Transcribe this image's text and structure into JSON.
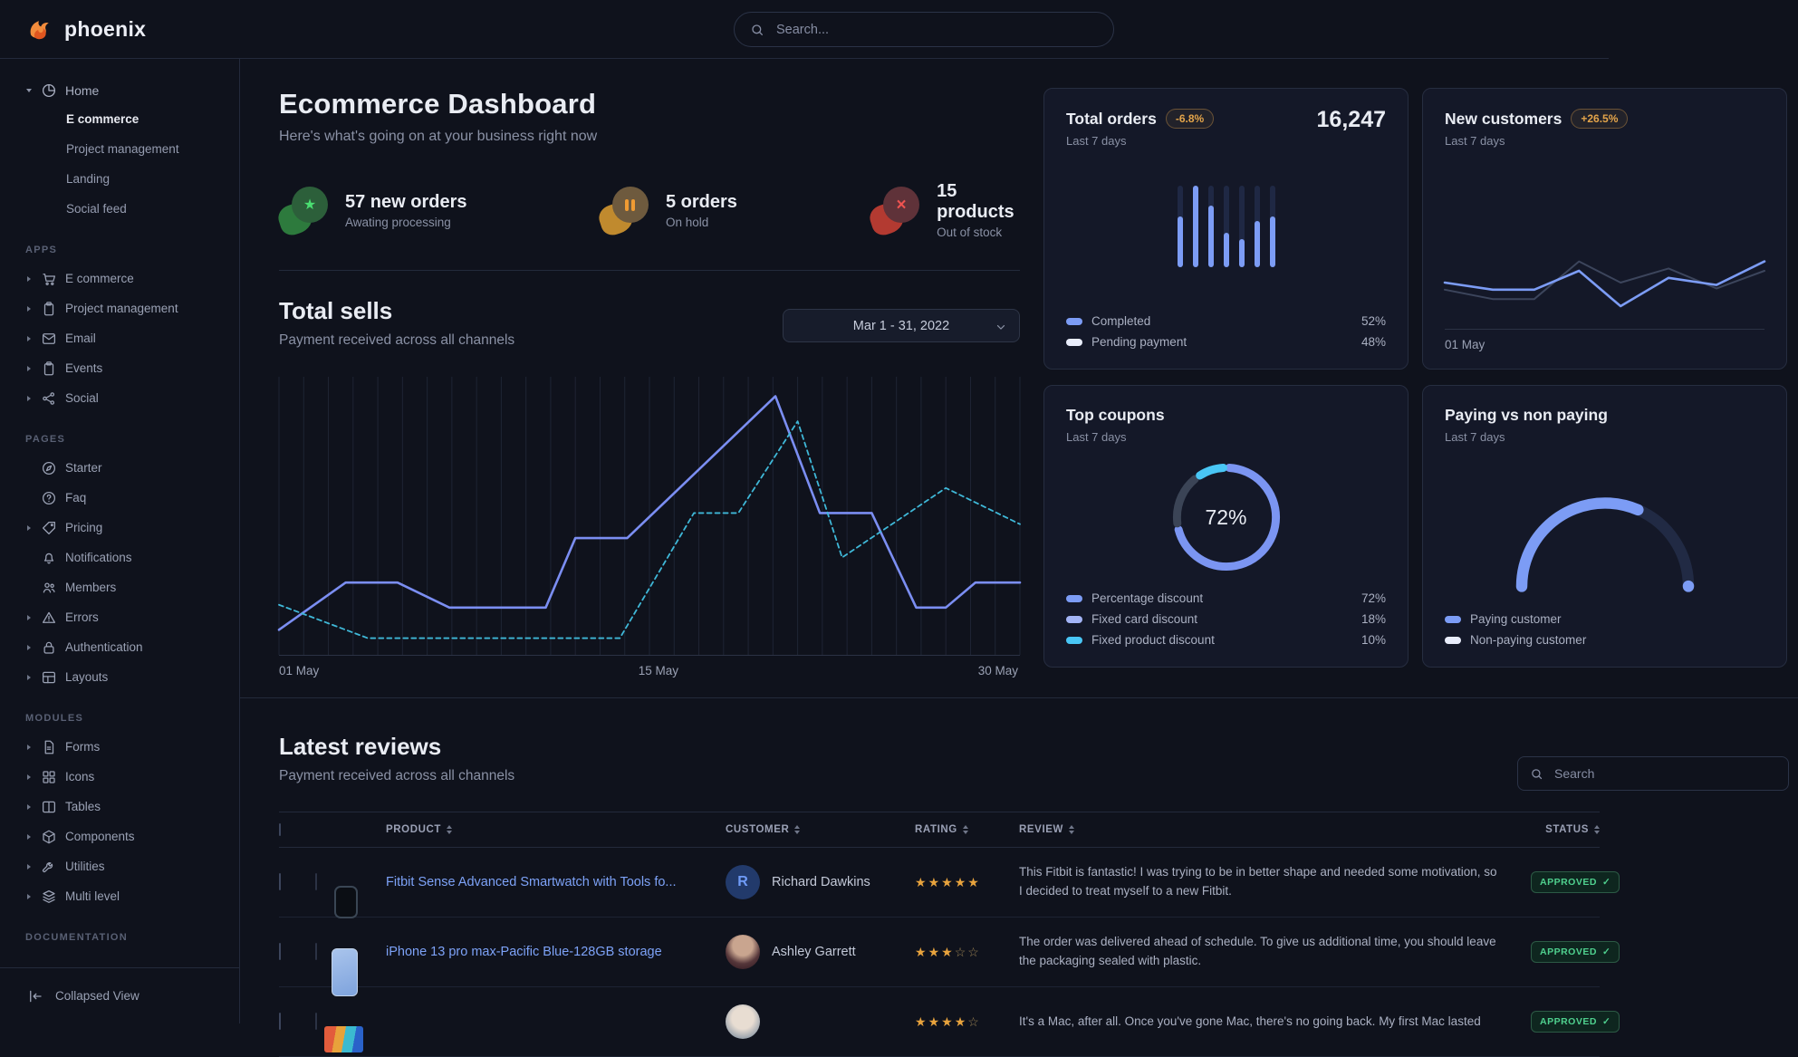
{
  "brand": {
    "name": "phoenix"
  },
  "navbar": {
    "search_placeholder": "Search..."
  },
  "sidebar": {
    "home": {
      "label": "Home",
      "children": [
        {
          "label": "E commerce",
          "active": true
        },
        {
          "label": "Project management",
          "active": false
        },
        {
          "label": "Landing",
          "active": false
        },
        {
          "label": "Social feed",
          "active": false
        }
      ]
    },
    "sections": [
      {
        "label": "APPS",
        "items": [
          {
            "label": "E commerce",
            "icon": "cart-icon",
            "caret": true
          },
          {
            "label": "Project management",
            "icon": "clipboard-icon",
            "caret": true
          },
          {
            "label": "Email",
            "icon": "envelope-icon",
            "caret": true
          },
          {
            "label": "Events",
            "icon": "clipboard-icon",
            "caret": true
          },
          {
            "label": "Social",
            "icon": "share-icon",
            "caret": true
          }
        ]
      },
      {
        "label": "PAGES",
        "items": [
          {
            "label": "Starter",
            "icon": "compass-icon",
            "caret": false
          },
          {
            "label": "Faq",
            "icon": "question-icon",
            "caret": false
          },
          {
            "label": "Pricing",
            "icon": "tag-icon",
            "caret": true
          },
          {
            "label": "Notifications",
            "icon": "bell-icon",
            "caret": false
          },
          {
            "label": "Members",
            "icon": "users-icon",
            "caret": false
          },
          {
            "label": "Errors",
            "icon": "warning-icon",
            "caret": true
          },
          {
            "label": "Authentication",
            "icon": "lock-icon",
            "caret": true
          },
          {
            "label": "Layouts",
            "icon": "layout-icon",
            "caret": true
          }
        ]
      },
      {
        "label": "MODULES",
        "items": [
          {
            "label": "Forms",
            "icon": "file-icon",
            "caret": true
          },
          {
            "label": "Icons",
            "icon": "grid-icon",
            "caret": true
          },
          {
            "label": "Tables",
            "icon": "table-icon",
            "caret": true
          },
          {
            "label": "Components",
            "icon": "box-icon",
            "caret": true
          },
          {
            "label": "Utilities",
            "icon": "wrench-icon",
            "caret": true
          },
          {
            "label": "Multi level",
            "icon": "layers-icon",
            "caret": true
          }
        ]
      },
      {
        "label": "DOCUMENTATION",
        "items": []
      }
    ],
    "footer": {
      "label": "Collapsed View"
    }
  },
  "page": {
    "title": "Ecommerce Dashboard",
    "subtitle": "Here's what's going on at your business right now"
  },
  "stats": [
    {
      "value": "57 new orders",
      "caption": "Awating processing",
      "icon": "star-icon",
      "color": "#4ade71"
    },
    {
      "value": "5 orders",
      "caption": "On hold",
      "icon": "pause-icon",
      "color": "#f09b33"
    },
    {
      "value": "15 products",
      "caption": "Out of stock",
      "icon": "x-icon",
      "color": "#ef5350"
    }
  ],
  "total_sells": {
    "title": "Total sells",
    "subtitle": "Payment received across all channels",
    "date_range": "Mar 1 - 31, 2022",
    "x_ticks": [
      "01 May",
      "15 May",
      "30 May"
    ]
  },
  "cards": {
    "total_orders": {
      "title": "Total orders",
      "badge": "-6.8%",
      "period": "Last 7 days",
      "value": "16,247",
      "legend": [
        {
          "label": "Completed",
          "value": "52%"
        },
        {
          "label": "Pending payment",
          "value": "48%"
        }
      ]
    },
    "new_customers": {
      "title": "New customers",
      "badge": "+26.5%",
      "period": "Last 7 days",
      "x_tick": "01 May"
    },
    "top_coupons": {
      "title": "Top coupons",
      "period": "Last 7 days",
      "center_label": "72%",
      "legend": [
        {
          "label": "Percentage discount",
          "value": "72%"
        },
        {
          "label": "Fixed card discount",
          "value": "18%"
        },
        {
          "label": "Fixed product discount",
          "value": "10%"
        }
      ]
    },
    "paying": {
      "title": "Paying vs non paying",
      "period": "Last 7 days",
      "legend": [
        {
          "label": "Paying customer"
        },
        {
          "label": "Non-paying customer"
        }
      ]
    }
  },
  "reviews": {
    "title": "Latest reviews",
    "subtitle": "Payment received across all channels",
    "search_placeholder": "Search",
    "columns": [
      "PRODUCT",
      "CUSTOMER",
      "RATING",
      "REVIEW",
      "STATUS"
    ],
    "rows": [
      {
        "product": "Fitbit Sense Advanced Smartwatch with Tools fo...",
        "customer": "Richard Dawkins",
        "avatar_initial": "R",
        "rating": 5,
        "review": "This Fitbit is fantastic! I was trying to be in better shape and needed some motivation, so I decided to treat myself to a new Fitbit.",
        "status": "APPROVED"
      },
      {
        "product": "iPhone 13 pro max-Pacific Blue-128GB storage",
        "customer": "Ashley Garrett",
        "avatar_initial": "",
        "rating": 3,
        "review": "The order was delivered ahead of schedule. To give us additional time, you should leave the packaging sealed with plastic.",
        "status": "APPROVED"
      },
      {
        "product": "",
        "customer": "",
        "avatar_initial": "",
        "rating": 4,
        "review": "It's a Mac, after all. Once you've gone Mac, there's no going back. My first Mac lasted",
        "status": "APPROVED"
      }
    ]
  },
  "chart_data": [
    {
      "id": "total-sells",
      "type": "line",
      "title": "Total sells",
      "x_ticks": [
        "01 May",
        "15 May",
        "30 May"
      ],
      "ylim": [
        0,
        100
      ],
      "grid": 30,
      "grid_color": "#1e2434",
      "series": [
        {
          "name": "sells-solid",
          "color": "#7b8ef2",
          "width": 2.6,
          "dash": false,
          "points": [
            [
              0,
              9
            ],
            [
              9,
              26
            ],
            [
              16,
              26
            ],
            [
              23,
              17
            ],
            [
              36,
              17
            ],
            [
              40,
              42
            ],
            [
              47,
              42
            ],
            [
              67,
              93
            ],
            [
              73,
              51
            ],
            [
              80,
              51
            ],
            [
              86,
              17
            ],
            [
              90,
              17
            ],
            [
              94,
              26
            ],
            [
              100,
              26
            ]
          ]
        },
        {
          "name": "sells-dashed",
          "color": "#3fb8d8",
          "width": 1.8,
          "dash": true,
          "points": [
            [
              0,
              18
            ],
            [
              12,
              6
            ],
            [
              46,
              6
            ],
            [
              56,
              51
            ],
            [
              62,
              51
            ],
            [
              70,
              84
            ],
            [
              76,
              35
            ],
            [
              90,
              60
            ],
            [
              100,
              47
            ]
          ]
        }
      ]
    },
    {
      "id": "total-orders",
      "type": "bar",
      "values": [
        62,
        100,
        76,
        42,
        35,
        57,
        62
      ],
      "max": 100,
      "bar_color": "#7c9cf5",
      "track_color": "#1f2844"
    },
    {
      "id": "new-customers",
      "type": "line",
      "series": [
        {
          "name": "previous",
          "color": "#3c455c",
          "width": 2,
          "dash": false,
          "points": [
            [
              0,
              24
            ],
            [
              15,
              16
            ],
            [
              28,
              16
            ],
            [
              42,
              48
            ],
            [
              55,
              30
            ],
            [
              70,
              42
            ],
            [
              85,
              25
            ],
            [
              100,
              40
            ]
          ]
        },
        {
          "name": "current",
          "color": "#7c9cf5",
          "width": 2.6,
          "dash": false,
          "points": [
            [
              0,
              30
            ],
            [
              15,
              24
            ],
            [
              28,
              24
            ],
            [
              42,
              40
            ],
            [
              55,
              10
            ],
            [
              70,
              34
            ],
            [
              85,
              28
            ],
            [
              100,
              48
            ]
          ]
        }
      ]
    },
    {
      "id": "top-coupons",
      "type": "donut",
      "center_label": "72%",
      "segments": [
        {
          "label": "Percentage discount",
          "value": 72,
          "color": "#7b95f2"
        },
        {
          "label": "Fixed card discount",
          "value": 18,
          "color": "#3b4456"
        },
        {
          "label": "Fixed product discount",
          "value": 10,
          "color": "#49c6f5"
        }
      ]
    },
    {
      "id": "paying-gauge",
      "type": "gauge",
      "segments": [
        {
          "label": "Paying customer",
          "value": 63,
          "color": "#7c9cf5"
        },
        {
          "label": "Non-paying customer",
          "value": 37,
          "color": "#212a44"
        }
      ]
    }
  ]
}
